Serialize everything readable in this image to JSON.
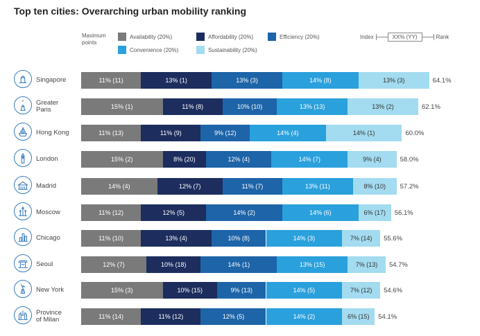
{
  "title": "Top ten cities: Overarching urban mobility ranking",
  "legend": {
    "maximum_points_label": "Maximum\npoints",
    "items": [
      {
        "label": "Availability (20%)",
        "color": "#7a7a7a"
      },
      {
        "label": "Affordability (20%)",
        "color": "#1c2d5e"
      },
      {
        "label": "Efficiency (20%)",
        "color": "#1d64a8"
      },
      {
        "label": "Convenience (20%)",
        "color": "#2aa0dc"
      },
      {
        "label": "Sustainability (20%)",
        "color": "#a3dbf0"
      }
    ],
    "key_index": "Index",
    "key_box": "XX% (YY)",
    "key_rank": "Rank"
  },
  "chart_data": {
    "type": "bar",
    "orientation": "horizontal",
    "stacked": true,
    "title": "Top ten cities: Overarching urban mobility ranking",
    "categories": [
      "Singapore",
      "Greater\nParis",
      "Hong Kong",
      "London",
      "Madrid",
      "Moscow",
      "Chicago",
      "Seoul",
      "New York",
      "Province\nof Milan"
    ],
    "icons": [
      "merlion-icon",
      "eiffel-tower-icon",
      "junk-boat-icon",
      "big-ben-icon",
      "palace-icon",
      "kremlin-icon",
      "skyline-icon",
      "temple-gate-icon",
      "statue-of-liberty-icon",
      "cathedral-icon"
    ],
    "series": [
      {
        "name": "Availability (20%)",
        "color": "#7a7a7a",
        "text_color": "#ffffff",
        "values": [
          11,
          15,
          11,
          15,
          14,
          11,
          11,
          12,
          15,
          11
        ],
        "labels": [
          "11% (11)",
          "15% (1)",
          "11% (13)",
          "15% (2)",
          "14% (4)",
          "11% (12)",
          "11% (10)",
          "12% (7)",
          "15% (3)",
          "11% (14)"
        ]
      },
      {
        "name": "Affordability (20%)",
        "color": "#1c2d5e",
        "text_color": "#ffffff",
        "values": [
          13,
          11,
          11,
          8,
          12,
          12,
          13,
          10,
          10,
          11
        ],
        "labels": [
          "13% (1)",
          "11% (8)",
          "11% (9)",
          "8% (20)",
          "12% (7)",
          "12% (5)",
          "13% (4)",
          "10% (18)",
          "10% (15)",
          "11% (12)"
        ]
      },
      {
        "name": "Efficiency (20%)",
        "color": "#1d64a8",
        "text_color": "#ffffff",
        "values": [
          13,
          10,
          9,
          12,
          11,
          14,
          10,
          14,
          9,
          12
        ],
        "labels": [
          "13% (3)",
          "10% (10)",
          "9% (12)",
          "12% (4)",
          "11% (7)",
          "14% (2)",
          "10% (8)",
          "14% (1)",
          "9% (13)",
          "12% (5)"
        ]
      },
      {
        "name": "Convenience (20%)",
        "color": "#2aa0dc",
        "text_color": "#ffffff",
        "values": [
          14,
          13,
          14,
          14,
          13,
          14,
          14,
          13,
          14,
          14
        ],
        "labels": [
          "14% (8)",
          "13% (13)",
          "14% (4)",
          "14% (7)",
          "13% (11)",
          "14% (6)",
          "14% (3)",
          "13% (15)",
          "14% (5)",
          "14% (2)"
        ]
      },
      {
        "name": "Sustainability (20%)",
        "color": "#a3dbf0",
        "text_color": "#333333",
        "values": [
          13,
          13,
          14,
          9,
          8,
          6,
          7,
          7,
          7,
          6
        ],
        "labels": [
          "13% (3)",
          "13% (2)",
          "14% (1)",
          "9% (4)",
          "8% (10)",
          "6% (17)",
          "7% (14)",
          "7% (13)",
          "7% (12)",
          "6% (15)"
        ]
      }
    ],
    "totals": [
      64.1,
      62.1,
      60.0,
      58.0,
      57.2,
      56.1,
      55.6,
      54.7,
      54.6,
      54.1
    ],
    "total_labels": [
      "64.1%",
      "62.1%",
      "60.0%",
      "58.0%",
      "57.2%",
      "56.1%",
      "55.6%",
      "54.7%",
      "54.6%",
      "54.1%"
    ],
    "xlabel": "",
    "ylabel": "",
    "grid": false,
    "legend_position": "top"
  }
}
